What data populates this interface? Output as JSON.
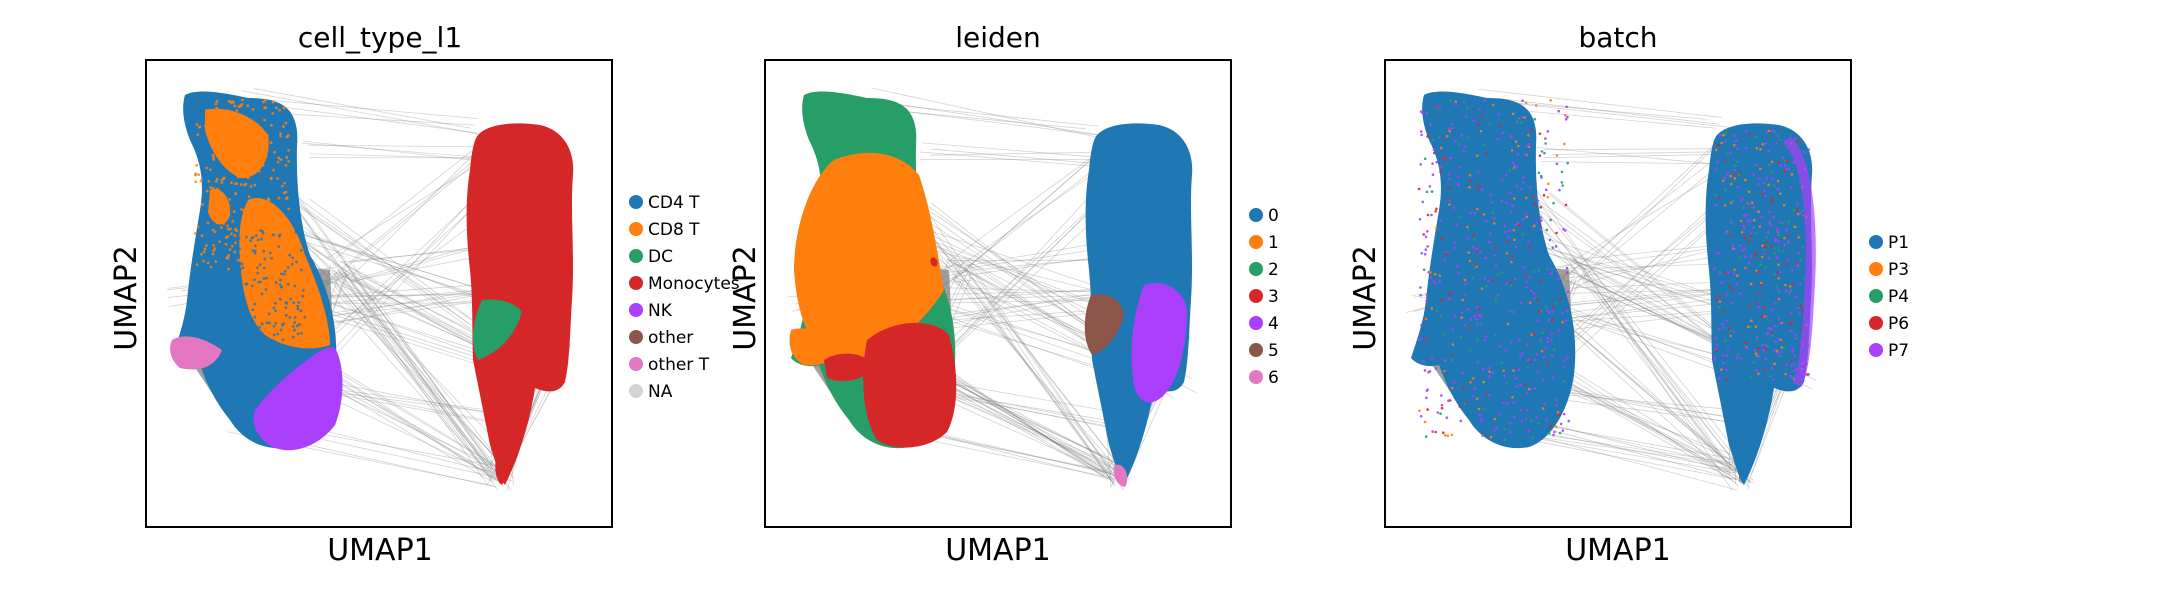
{
  "chart_data": [
    {
      "type": "scatter",
      "title": "cell_type_l1",
      "xlabel": "UMAP1",
      "ylabel": "UMAP2",
      "legend_placement": "right",
      "grid": false,
      "overlay": "PAGA graph edges (gray)",
      "categories": [
        {
          "name": "CD4 T",
          "color": "#1f77b4"
        },
        {
          "name": "CD8 T",
          "color": "#ff7f0e"
        },
        {
          "name": "DC",
          "color": "#279e68"
        },
        {
          "name": "Monocytes",
          "color": "#d62728"
        },
        {
          "name": "NK",
          "color": "#aa40fc"
        },
        {
          "name": "other",
          "color": "#8c564b"
        },
        {
          "name": "other T",
          "color": "#e377c2"
        },
        {
          "name": "NA",
          "color": "#d3d3d3"
        }
      ]
    },
    {
      "type": "scatter",
      "title": "leiden",
      "xlabel": "UMAP1",
      "ylabel": "UMAP2",
      "legend_placement": "right",
      "grid": false,
      "overlay": "PAGA graph edges (gray)",
      "categories": [
        {
          "name": "0",
          "color": "#1f77b4"
        },
        {
          "name": "1",
          "color": "#ff7f0e"
        },
        {
          "name": "2",
          "color": "#279e68"
        },
        {
          "name": "3",
          "color": "#d62728"
        },
        {
          "name": "4",
          "color": "#aa40fc"
        },
        {
          "name": "5",
          "color": "#8c564b"
        },
        {
          "name": "6",
          "color": "#e377c2"
        }
      ]
    },
    {
      "type": "scatter",
      "title": "batch",
      "xlabel": "UMAP1",
      "ylabel": "UMAP2",
      "legend_placement": "right",
      "grid": false,
      "overlay": "PAGA graph edges (gray)",
      "categories": [
        {
          "name": "P1",
          "color": "#1f77b4"
        },
        {
          "name": "P3",
          "color": "#ff7f0e"
        },
        {
          "name": "P4",
          "color": "#279e68"
        },
        {
          "name": "P6",
          "color": "#d62728"
        },
        {
          "name": "P7",
          "color": "#aa40fc"
        }
      ]
    }
  ]
}
